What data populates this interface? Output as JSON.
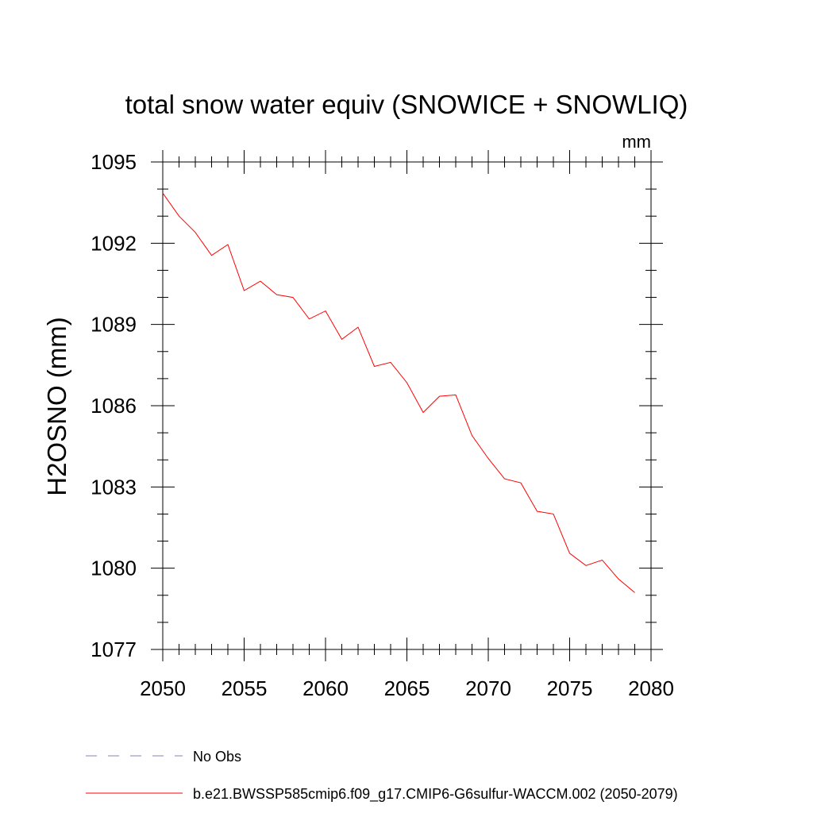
{
  "chart_data": {
    "type": "line",
    "title": "total snow water equiv (SNOWICE + SNOWLIQ)",
    "units": "mm",
    "ylabel": "H2OSNO  (mm)",
    "xlabel": "",
    "xlim": [
      2050,
      2080
    ],
    "ylim": [
      1077,
      1095
    ],
    "xticks": [
      "2050",
      "2055",
      "2060",
      "2065",
      "2070",
      "2075",
      "2080"
    ],
    "yticks": [
      "1077",
      "1080",
      "1083",
      "1086",
      "1089",
      "1092",
      "1095"
    ],
    "grid": false,
    "legend_position": "bottom",
    "series": [
      {
        "name": "No Obs",
        "color": "#8a7fb8",
        "dash": "dashed",
        "x": [],
        "y": []
      },
      {
        "name": "b.e21.BWSSP585cmip6.f09_g17.CMIP6-G6sulfur-WACCM.002 (2050-2079)",
        "color": "#ff0000",
        "dash": "solid",
        "x": [
          2050,
          2051,
          2052,
          2053,
          2054,
          2055,
          2056,
          2057,
          2058,
          2059,
          2060,
          2061,
          2062,
          2063,
          2064,
          2065,
          2066,
          2067,
          2068,
          2069,
          2070,
          2071,
          2072,
          2073,
          2074,
          2075,
          2076,
          2077,
          2078,
          2079
        ],
        "y": [
          1093.85,
          1093.0,
          1092.4,
          1091.55,
          1091.95,
          1090.25,
          1090.6,
          1090.1,
          1090.0,
          1089.2,
          1089.5,
          1088.45,
          1088.9,
          1087.45,
          1087.6,
          1086.85,
          1085.75,
          1086.35,
          1086.4,
          1084.9,
          1084.05,
          1083.3,
          1083.15,
          1082.1,
          1082.0,
          1080.55,
          1080.1,
          1080.3,
          1079.6,
          1079.1
        ]
      }
    ]
  }
}
